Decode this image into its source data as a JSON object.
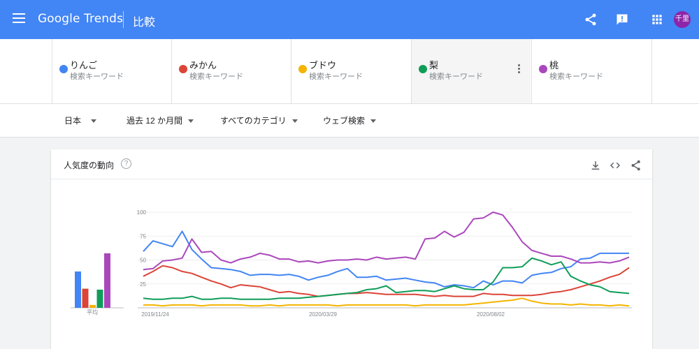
{
  "header": {
    "logo": "Google Trends",
    "page_title": "比較",
    "avatar_text": "千里"
  },
  "keywords": [
    {
      "name": "りんご",
      "sub": "検索キーワード",
      "color": "#4285f4"
    },
    {
      "name": "みかん",
      "sub": "検索キーワード",
      "color": "#db4437"
    },
    {
      "name": "ブドウ",
      "sub": "検索キーワード",
      "color": "#f4b400"
    },
    {
      "name": "梨",
      "sub": "検索キーワード",
      "color": "#0f9d58"
    },
    {
      "name": "桃",
      "sub": "検索キーワード",
      "color": "#ab47bc"
    }
  ],
  "filters": {
    "region": "日本",
    "period": "過去 12 か月間",
    "category": "すべてのカテゴリ",
    "search_type": "ウェブ検索"
  },
  "card": {
    "title": "人気度の動向",
    "help": "?"
  },
  "chart_data": {
    "type": "line",
    "x_ticks": [
      "2019/11/24",
      "2020/03/29",
      "2020/08/02"
    ],
    "y_ticks": [
      25,
      50,
      75,
      100
    ],
    "ylim": [
      0,
      100
    ],
    "average_label": "平均",
    "averages": [
      {
        "name": "りんご",
        "value": 38,
        "color": "#4285f4"
      },
      {
        "name": "みかん",
        "value": 20,
        "color": "#db4437"
      },
      {
        "name": "ブドウ",
        "value": 3,
        "color": "#f4b400"
      },
      {
        "name": "梨",
        "value": 19,
        "color": "#0f9d58"
      },
      {
        "name": "桃",
        "value": 57,
        "color": "#ab47bc"
      }
    ],
    "series": [
      {
        "name": "りんご",
        "color": "#4285f4",
        "values": [
          59,
          70,
          67,
          64,
          80,
          61,
          51,
          42,
          41,
          40,
          38,
          34,
          35,
          35,
          34,
          35,
          33,
          29,
          32,
          34,
          38,
          41,
          32,
          32,
          33,
          29,
          30,
          31,
          29,
          27,
          26,
          22,
          24,
          23,
          21,
          28,
          24,
          28,
          28,
          26,
          34,
          36,
          37,
          41,
          43,
          51,
          52,
          57,
          57,
          57,
          57
        ]
      },
      {
        "name": "みかん",
        "color": "#db4437",
        "values": [
          33,
          38,
          44,
          42,
          38,
          36,
          32,
          28,
          25,
          21,
          24,
          23,
          22,
          19,
          16,
          17,
          15,
          14,
          12,
          13,
          14,
          15,
          15,
          16,
          15,
          14,
          14,
          14,
          14,
          13,
          12,
          13,
          12,
          12,
          12,
          15,
          14,
          14,
          13,
          13,
          13,
          14,
          16,
          17,
          19,
          22,
          25,
          28,
          32,
          35,
          42
        ]
      },
      {
        "name": "ブドウ",
        "color": "#f4b400",
        "values": [
          3,
          3,
          2,
          3,
          3,
          3,
          2,
          3,
          3,
          3,
          3,
          2,
          2,
          3,
          2,
          3,
          3,
          3,
          3,
          3,
          2,
          3,
          3,
          3,
          3,
          3,
          3,
          3,
          2,
          3,
          3,
          3,
          3,
          3,
          4,
          5,
          6,
          7,
          8,
          10,
          7,
          5,
          4,
          4,
          3,
          4,
          3,
          3,
          2,
          3,
          2
        ]
      },
      {
        "name": "梨",
        "color": "#0f9d58",
        "values": [
          10,
          9,
          9,
          10,
          10,
          12,
          9,
          9,
          10,
          10,
          9,
          9,
          9,
          9,
          10,
          10,
          10,
          11,
          12,
          13,
          14,
          15,
          16,
          19,
          20,
          23,
          16,
          17,
          18,
          18,
          17,
          20,
          23,
          20,
          19,
          19,
          27,
          42,
          42,
          43,
          52,
          49,
          45,
          48,
          33,
          28,
          24,
          22,
          17,
          16,
          15
        ]
      },
      {
        "name": "桃",
        "color": "#ab47bc",
        "values": [
          40,
          41,
          49,
          50,
          52,
          72,
          58,
          59,
          50,
          47,
          51,
          53,
          57,
          55,
          51,
          51,
          48,
          49,
          47,
          49,
          50,
          50,
          51,
          50,
          53,
          51,
          52,
          53,
          51,
          72,
          73,
          80,
          74,
          79,
          93,
          94,
          100,
          97,
          84,
          69,
          60,
          57,
          54,
          54,
          51,
          47,
          47,
          48,
          47,
          49,
          53
        ]
      }
    ]
  }
}
